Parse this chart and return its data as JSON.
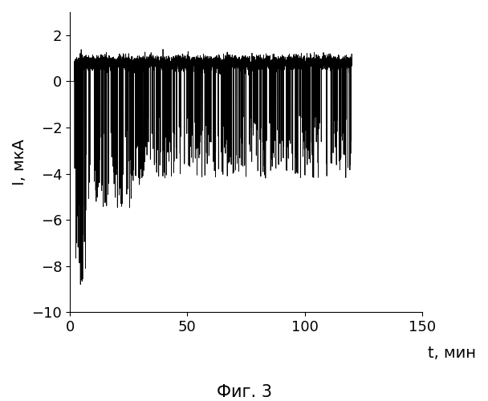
{
  "ylabel": "I, мкА",
  "xlabel": "t, мин",
  "caption": "Фиг. 3",
  "xlim": [
    0,
    150
  ],
  "ylim": [
    -10,
    3
  ],
  "yticks": [
    -10,
    -8,
    -6,
    -4,
    -2,
    0,
    2
  ],
  "xticks": [
    0,
    50,
    100,
    150
  ],
  "background_color": "#ffffff",
  "line_color": "#000000",
  "seed": 42,
  "n_points": 5000,
  "t_max": 120,
  "baseline_mean": 0.8,
  "baseline_std": 0.15,
  "spike_prob_early": 0.1,
  "spike_prob_late": 0.07,
  "spike_early_end": 30,
  "t_start_signal": 2,
  "figsize": [
    6.08,
    5.0
  ],
  "dpi": 100,
  "ylabel_fontsize": 14,
  "xlabel_fontsize": 14,
  "tick_fontsize": 13,
  "caption_fontsize": 15
}
